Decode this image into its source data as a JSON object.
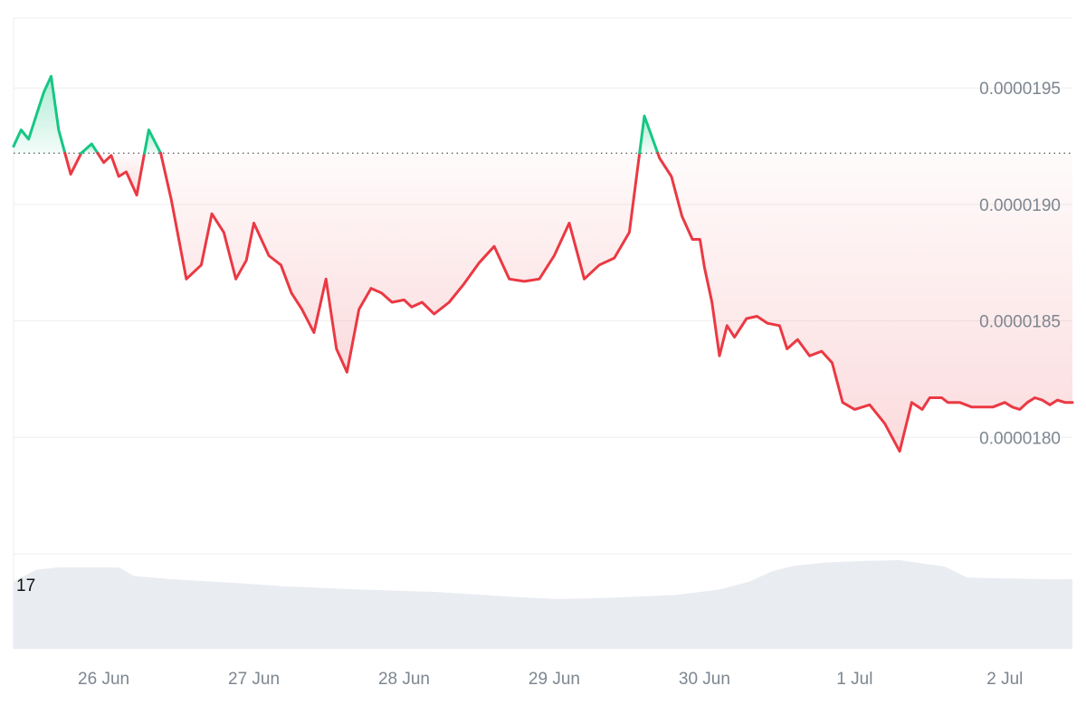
{
  "chart_data": {
    "type": "line",
    "title": "",
    "xlabel": "",
    "ylabel": "",
    "x_tick_labels": [
      "26 Jun",
      "27 Jun",
      "28 Jun",
      "29 Jun",
      "30 Jun",
      "1 Jul",
      "2 Jul"
    ],
    "y_tick_labels": [
      "0.0000195",
      "0.0000190",
      "0.0000185",
      "0.0000180"
    ],
    "y_ticks": [
      1.95e-05,
      1.9e-05,
      1.85e-05,
      1.8e-05
    ],
    "ylim": [
      1.75e-05,
      1.98e-05
    ],
    "xlim": [
      -0.6,
      6.45
    ],
    "baseline": 1.922e-05,
    "grid": true,
    "colors": {
      "up": "#16c784",
      "down": "#ea3943",
      "volume": "#e9ecf1",
      "grid": "#eeeeee",
      "baseline": "#555555"
    },
    "series": [
      {
        "x": [
          -0.6,
          -0.55,
          -0.5,
          -0.45,
          -0.4,
          -0.35,
          -0.3,
          -0.22,
          -0.15,
          -0.08,
          0.0,
          0.05,
          0.1,
          0.15,
          0.22,
          0.3,
          0.38,
          0.45,
          0.55,
          0.65,
          0.72,
          0.8,
          0.88,
          0.95,
          1.0,
          1.05,
          1.1,
          1.18,
          1.25,
          1.32,
          1.4,
          1.48,
          1.55,
          1.62,
          1.7,
          1.78,
          1.85,
          1.92,
          2.0,
          2.05,
          2.12,
          2.2,
          2.3,
          2.4,
          2.5,
          2.6,
          2.7,
          2.8,
          2.9,
          3.0,
          3.1,
          3.2,
          3.3,
          3.4,
          3.5,
          3.6,
          3.7,
          3.78,
          3.85,
          3.92,
          3.97,
          4.0,
          4.05,
          4.1,
          4.15,
          4.2,
          4.28,
          4.35,
          4.42,
          4.5,
          4.55,
          4.62,
          4.7,
          4.78,
          4.85,
          4.92,
          5.0,
          5.1,
          5.2,
          5.3,
          5.38,
          5.45,
          5.5,
          5.58,
          5.62,
          5.7,
          5.78,
          5.85,
          5.92,
          6.0,
          6.05,
          6.1,
          6.15,
          6.2,
          6.25,
          6.3,
          6.35,
          6.4,
          6.45
        ],
        "y": [
          1.925e-05,
          1.932e-05,
          1.928e-05,
          1.938e-05,
          1.948e-05,
          1.955e-05,
          1.932e-05,
          1.913e-05,
          1.922e-05,
          1.926e-05,
          1.918e-05,
          1.921e-05,
          1.912e-05,
          1.914e-05,
          1.904e-05,
          1.932e-05,
          1.922e-05,
          1.902e-05,
          1.868e-05,
          1.874e-05,
          1.896e-05,
          1.888e-05,
          1.868e-05,
          1.876e-05,
          1.892e-05,
          1.885e-05,
          1.878e-05,
          1.874e-05,
          1.862e-05,
          1.855e-05,
          1.845e-05,
          1.868e-05,
          1.838e-05,
          1.828e-05,
          1.855e-05,
          1.864e-05,
          1.862e-05,
          1.858e-05,
          1.859e-05,
          1.856e-05,
          1.858e-05,
          1.853e-05,
          1.858e-05,
          1.866e-05,
          1.875e-05,
          1.882e-05,
          1.868e-05,
          1.867e-05,
          1.868e-05,
          1.878e-05,
          1.892e-05,
          1.868e-05,
          1.874e-05,
          1.877e-05,
          1.888e-05,
          1.938e-05,
          1.92e-05,
          1.912e-05,
          1.895e-05,
          1.885e-05,
          1.885e-05,
          1.873e-05,
          1.858e-05,
          1.835e-05,
          1.848e-05,
          1.843e-05,
          1.851e-05,
          1.852e-05,
          1.849e-05,
          1.848e-05,
          1.838e-05,
          1.842e-05,
          1.835e-05,
          1.837e-05,
          1.832e-05,
          1.815e-05,
          1.812e-05,
          1.814e-05,
          1.806e-05,
          1.794e-05,
          1.815e-05,
          1.812e-05,
          1.817e-05,
          1.817e-05,
          1.815e-05,
          1.815e-05,
          1.813e-05,
          1.813e-05,
          1.813e-05,
          1.815e-05,
          1.813e-05,
          1.812e-05,
          1.815e-05,
          1.817e-05,
          1.816e-05,
          1.814e-05,
          1.816e-05,
          1.815e-05,
          1.815e-05
        ]
      }
    ],
    "volume": {
      "label": "17",
      "x": [
        -0.6,
        -0.45,
        -0.3,
        0.1,
        0.2,
        0.45,
        0.9,
        1.2,
        1.7,
        2.2,
        2.7,
        3.0,
        3.3,
        3.8,
        4.1,
        4.3,
        4.45,
        4.6,
        4.8,
        5.05,
        5.3,
        5.6,
        5.75,
        6.0,
        6.3,
        6.45
      ],
      "y": [
        15.5,
        17.0,
        17.3,
        17.3,
        16.2,
        15.8,
        15.3,
        14.9,
        14.5,
        14.2,
        13.6,
        13.3,
        13.4,
        13.8,
        14.5,
        15.5,
        16.8,
        17.5,
        17.9,
        18.1,
        18.2,
        17.4,
        16.0,
        15.9,
        15.8,
        15.8
      ],
      "ylim": [
        7,
        19
      ]
    }
  }
}
